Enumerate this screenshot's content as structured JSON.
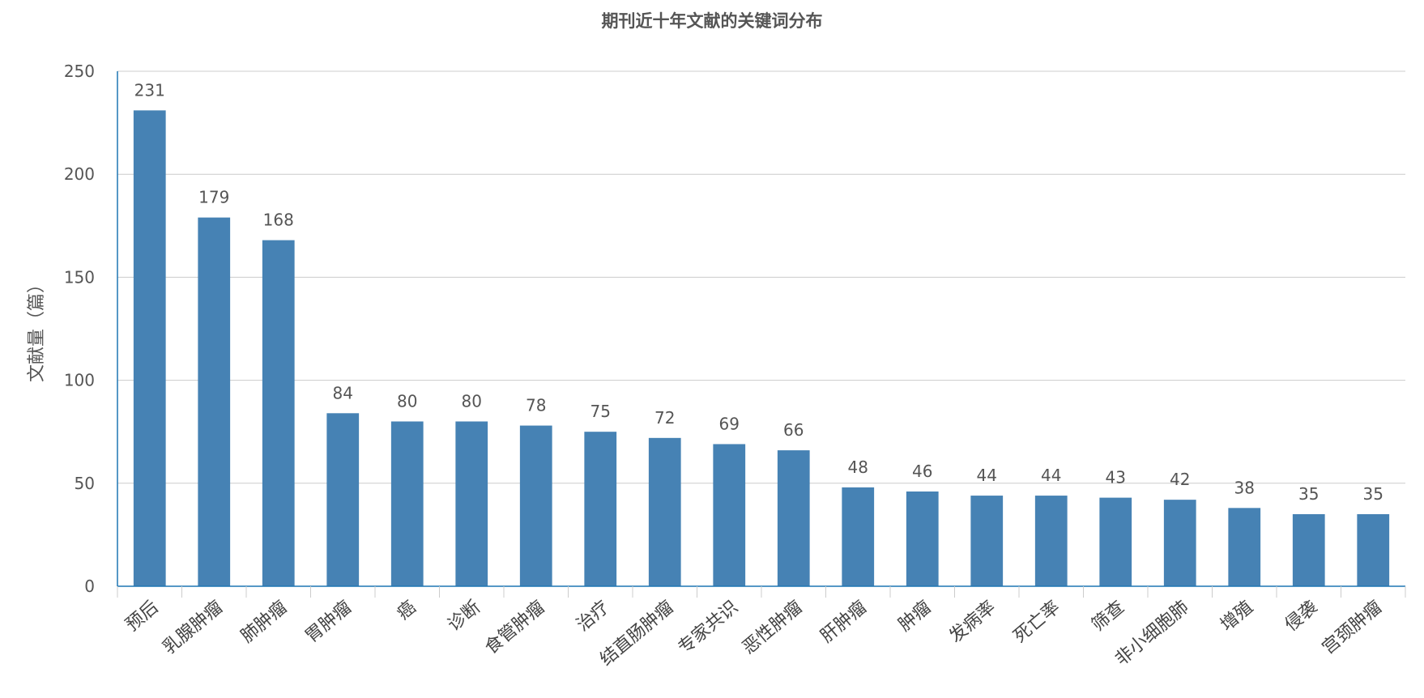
{
  "chart_data": {
    "type": "bar",
    "title": "期刊近十年文献的关键词分布",
    "xlabel": "",
    "ylabel": "文献量（篇）",
    "ylim": [
      0,
      250
    ],
    "yticks": [
      0,
      50,
      100,
      150,
      200,
      250
    ],
    "grid": true,
    "categories": [
      "预后",
      "乳腺肿瘤",
      "肺肿瘤",
      "胃肿瘤",
      "癌",
      "诊断",
      "食管肿瘤",
      "治疗",
      "结直肠肿瘤",
      "专家共识",
      "恶性肿瘤",
      "肝肿瘤",
      "肿瘤",
      "发病率",
      "死亡率",
      "筛查",
      "非小细胞肺",
      "增殖",
      "侵袭",
      "宫颈肿瘤"
    ],
    "values": [
      231,
      179,
      168,
      84,
      80,
      80,
      78,
      75,
      72,
      69,
      66,
      48,
      46,
      44,
      44,
      43,
      42,
      38,
      35,
      35
    ],
    "colors": {
      "bar": "#4682b4",
      "axis": "#1f77b4",
      "grid": "#cccccc"
    }
  }
}
